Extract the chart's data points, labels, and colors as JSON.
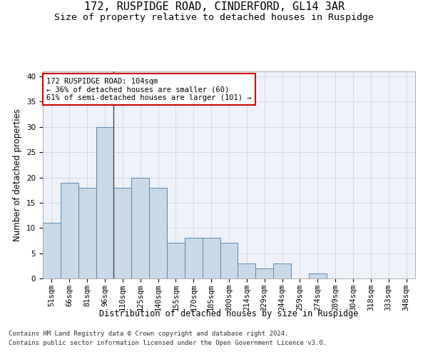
{
  "title": "172, RUSPIDGE ROAD, CINDERFORD, GL14 3AR",
  "subtitle": "Size of property relative to detached houses in Ruspidge",
  "xlabel": "Distribution of detached houses by size in Ruspidge",
  "ylabel": "Number of detached properties",
  "footnote1": "Contains HM Land Registry data © Crown copyright and database right 2024.",
  "footnote2": "Contains public sector information licensed under the Open Government Licence v3.0.",
  "bar_labels": [
    "51sqm",
    "66sqm",
    "81sqm",
    "96sqm",
    "110sqm",
    "125sqm",
    "140sqm",
    "155sqm",
    "170sqm",
    "185sqm",
    "200sqm",
    "214sqm",
    "229sqm",
    "244sqm",
    "259sqm",
    "274sqm",
    "289sqm",
    "304sqm",
    "318sqm",
    "333sqm",
    "348sqm"
  ],
  "bar_values": [
    11,
    19,
    18,
    30,
    18,
    20,
    18,
    7,
    8,
    8,
    7,
    3,
    2,
    3,
    0,
    1,
    0,
    0,
    0,
    0,
    0
  ],
  "bar_color": "#c9d9e8",
  "bar_edge_color": "#5a87b0",
  "vline_x": 3.5,
  "annotation_line1": "172 RUSPIDGE ROAD: 104sqm",
  "annotation_line2": "← 36% of detached houses are smaller (60)",
  "annotation_line3": "61% of semi-detached houses are larger (101) →",
  "annotation_box_color": "#ffffff",
  "annotation_box_edge_color": "#cc0000",
  "ylim": [
    0,
    41
  ],
  "yticks": [
    0,
    5,
    10,
    15,
    20,
    25,
    30,
    35,
    40
  ],
  "grid_color": "#d0d8e8",
  "bg_color": "#eef2f8",
  "title_fontsize": 11,
  "subtitle_fontsize": 9.5,
  "axis_label_fontsize": 8.5,
  "tick_fontsize": 7.5,
  "annotation_fontsize": 7.5,
  "footnote_fontsize": 6.5
}
